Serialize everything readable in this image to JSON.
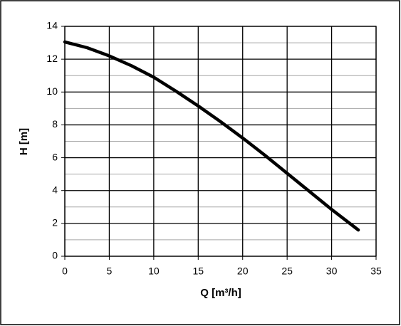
{
  "chart_data": {
    "type": "line",
    "xlabel": "Q [m³/h]",
    "ylabel": "H [m]",
    "x": [
      0,
      2.5,
      5,
      7.5,
      10,
      12.5,
      15,
      17.5,
      20,
      22.5,
      25,
      27.5,
      30,
      33
    ],
    "series": [
      {
        "color": "#000000",
        "values": [
          13.05,
          12.7,
          12.2,
          11.6,
          10.9,
          10.05,
          9.15,
          8.2,
          7.2,
          6.15,
          5.05,
          3.95,
          2.85,
          1.6
        ]
      }
    ],
    "xlim": [
      0,
      35
    ],
    "xticks": [
      0,
      5,
      10,
      15,
      20,
      25,
      30,
      35
    ],
    "ylim": [
      0,
      14
    ],
    "yticks": [
      0,
      2,
      4,
      6,
      8,
      10,
      12,
      14
    ],
    "grid": true,
    "minor_grid": true
  }
}
